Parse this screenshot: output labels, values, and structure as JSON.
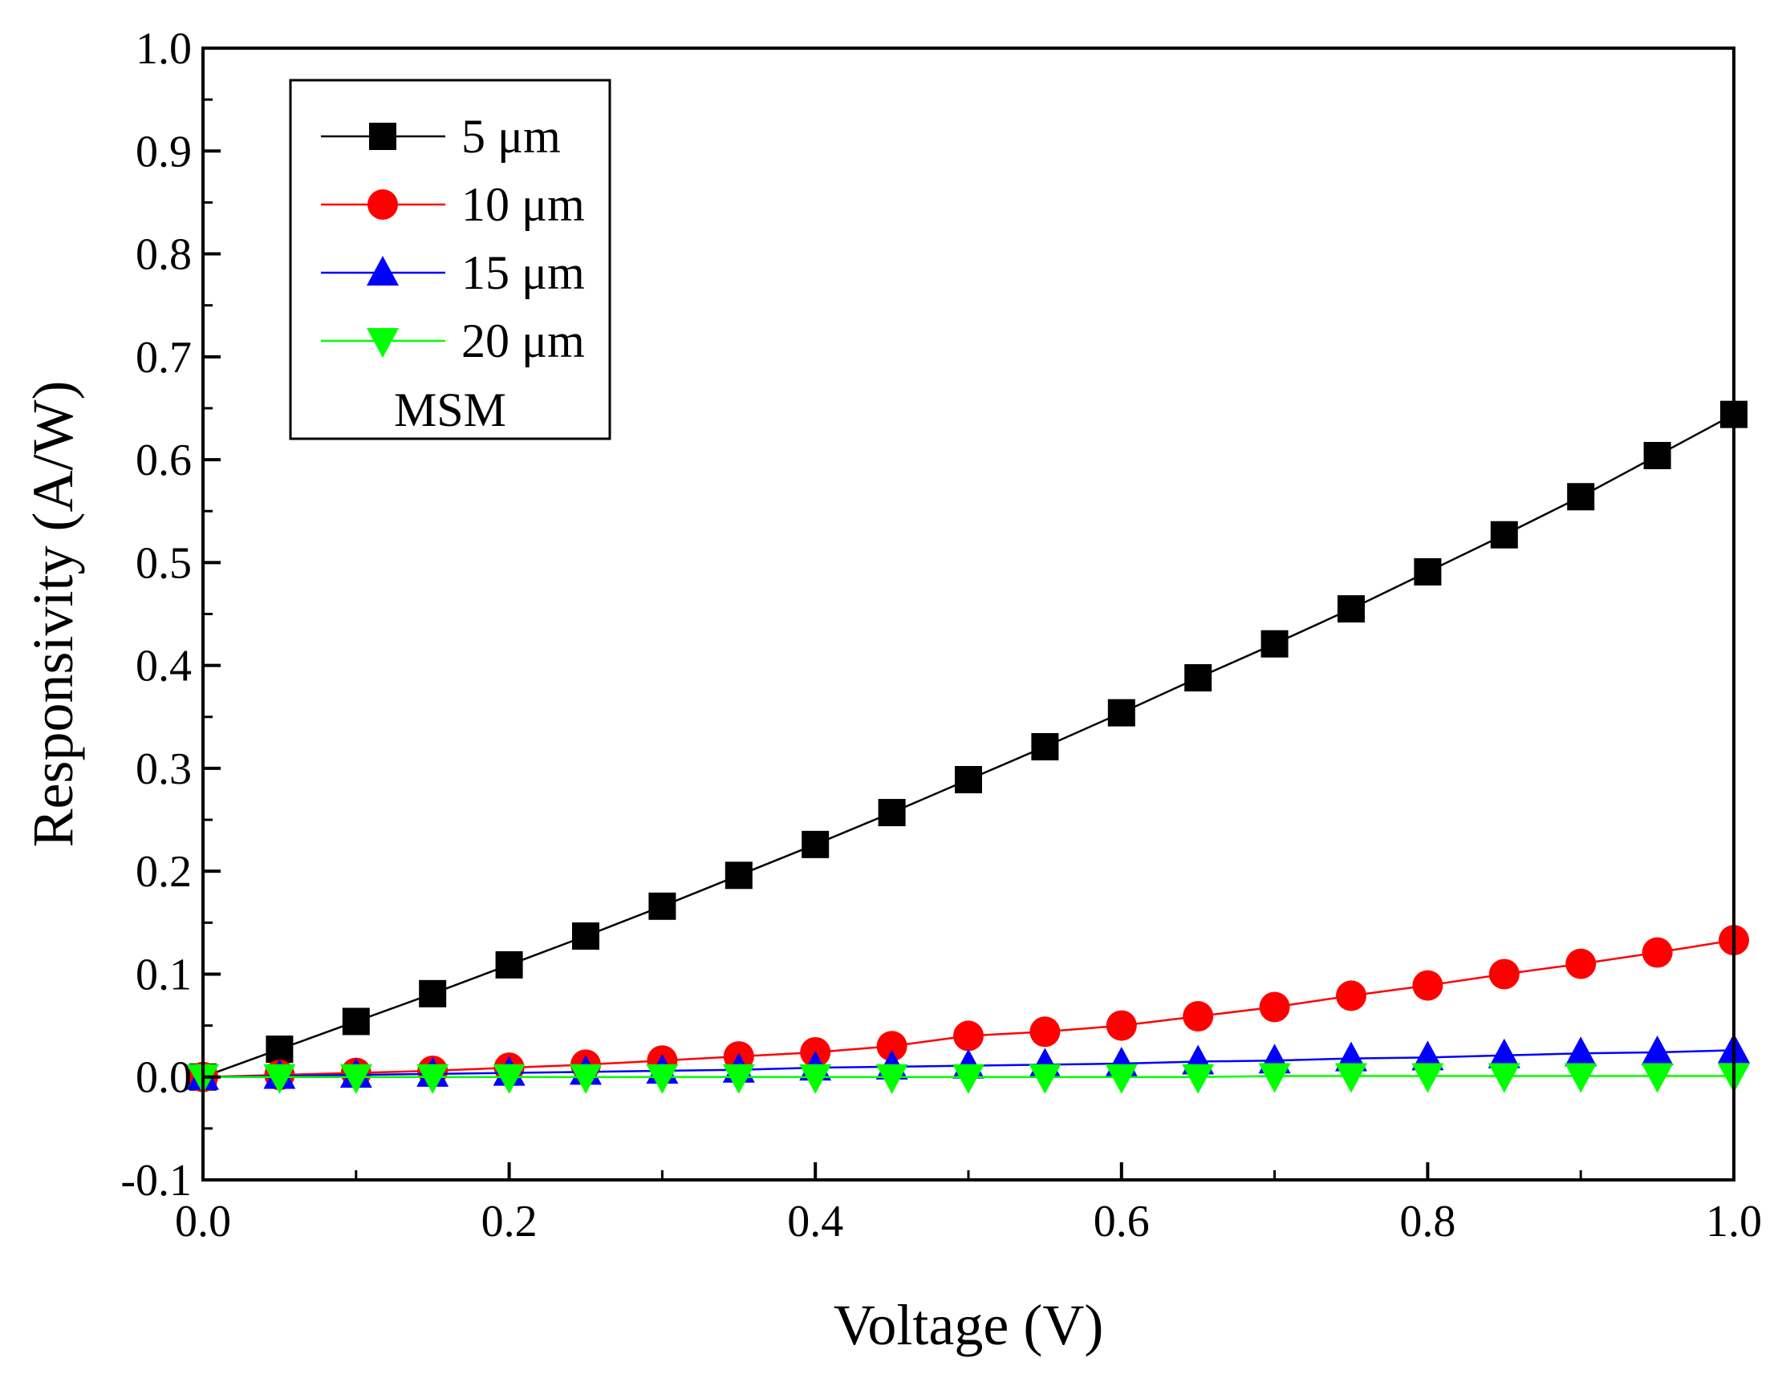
{
  "chart_data": {
    "type": "line",
    "title": "",
    "xlabel": "Voltage (V)",
    "ylabel": "Responsivity (A/W)",
    "xlim": [
      0.0,
      1.0
    ],
    "ylim": [
      -0.1,
      1.0
    ],
    "grid": false,
    "legend_position": "top-left",
    "legend_note": "MSM",
    "x_ticks": [
      {
        "value": 0.0,
        "label": "0.0"
      },
      {
        "value": 0.2,
        "label": "0.2"
      },
      {
        "value": 0.4,
        "label": "0.4"
      },
      {
        "value": 0.6,
        "label": "0.6"
      },
      {
        "value": 0.8,
        "label": "0.8"
      },
      {
        "value": 1.0,
        "label": "1.0"
      }
    ],
    "y_ticks": [
      {
        "value": -0.1,
        "label": "-0.1"
      },
      {
        "value": 0.0,
        "label": "0.0"
      },
      {
        "value": 0.1,
        "label": "0.1"
      },
      {
        "value": 0.2,
        "label": "0.2"
      },
      {
        "value": 0.3,
        "label": "0.3"
      },
      {
        "value": 0.4,
        "label": "0.4"
      },
      {
        "value": 0.5,
        "label": "0.5"
      },
      {
        "value": 0.6,
        "label": "0.6"
      },
      {
        "value": 0.7,
        "label": "0.7"
      },
      {
        "value": 0.8,
        "label": "0.8"
      },
      {
        "value": 0.9,
        "label": "0.9"
      },
      {
        "value": 1.0,
        "label": "1.0"
      }
    ],
    "x": [
      0.0,
      0.05,
      0.1,
      0.15,
      0.2,
      0.25,
      0.3,
      0.35,
      0.4,
      0.45,
      0.5,
      0.55,
      0.6,
      0.65,
      0.7,
      0.75,
      0.8,
      0.85,
      0.9,
      0.95,
      1.0
    ],
    "series": [
      {
        "name": "5 μm",
        "color": "#000000",
        "marker": "square",
        "values": [
          0.0,
          0.027,
          0.054,
          0.081,
          0.109,
          0.137,
          0.166,
          0.196,
          0.226,
          0.257,
          0.289,
          0.321,
          0.354,
          0.388,
          0.421,
          0.455,
          0.491,
          0.527,
          0.564,
          0.604,
          0.644
        ]
      },
      {
        "name": "10 μm",
        "color": "#ff0000",
        "marker": "circle",
        "values": [
          0.0,
          0.002,
          0.004,
          0.006,
          0.009,
          0.012,
          0.016,
          0.02,
          0.024,
          0.03,
          0.04,
          0.044,
          0.05,
          0.059,
          0.068,
          0.079,
          0.089,
          0.1,
          0.11,
          0.121,
          0.133
        ]
      },
      {
        "name": "15 μm",
        "color": "#0000ff",
        "marker": "triangle-up",
        "values": [
          0.0,
          0.001,
          0.002,
          0.003,
          0.004,
          0.005,
          0.006,
          0.007,
          0.009,
          0.01,
          0.011,
          0.012,
          0.013,
          0.015,
          0.016,
          0.018,
          0.019,
          0.021,
          0.023,
          0.024,
          0.026
        ]
      },
      {
        "name": "20 μm",
        "color": "#00ff00",
        "marker": "triangle-down",
        "values": [
          0.0,
          0.0,
          0.0,
          0.0,
          0.0,
          0.0,
          0.0,
          0.0,
          0.0,
          0.0,
          0.0,
          0.0,
          0.0,
          0.0,
          0.001,
          0.001,
          0.001,
          0.001,
          0.001,
          0.001,
          0.001
        ]
      }
    ]
  }
}
